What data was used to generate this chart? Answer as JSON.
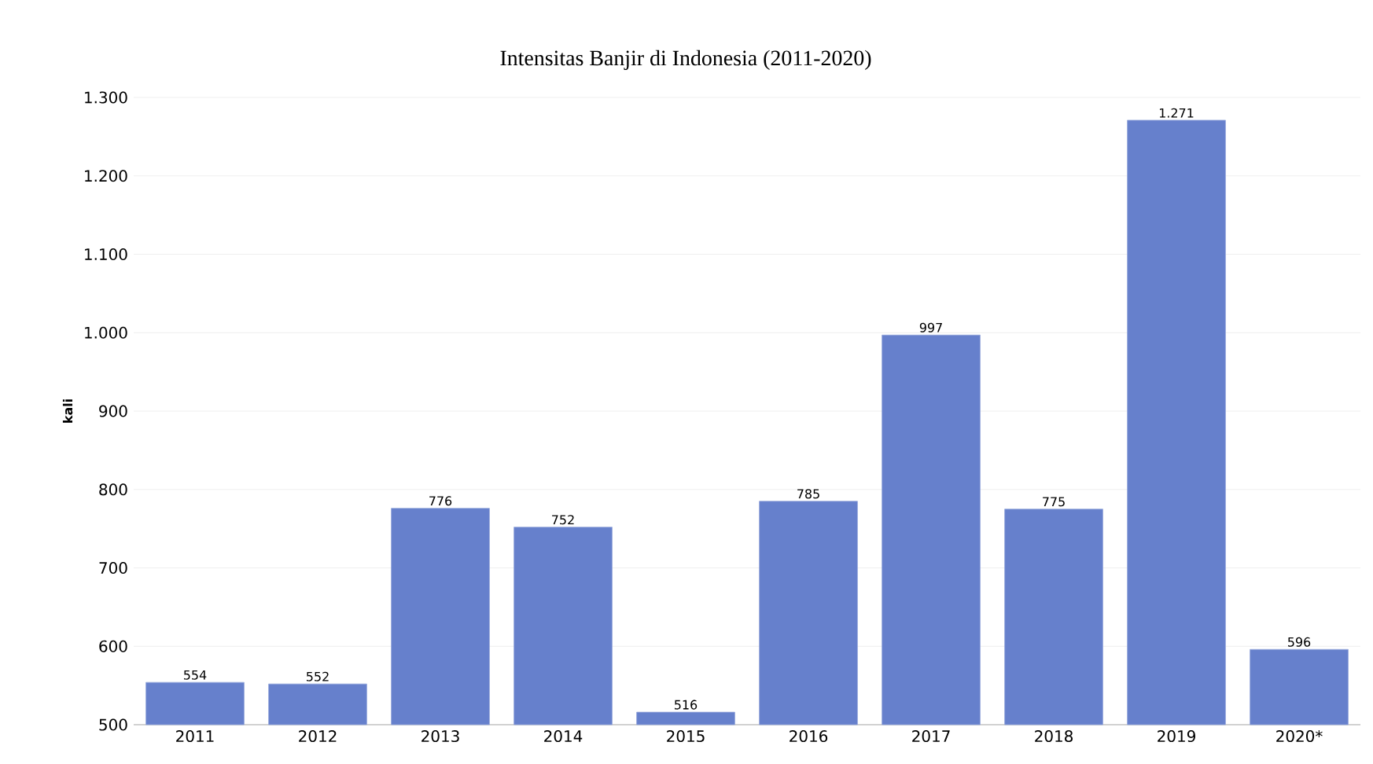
{
  "chart_data": {
    "type": "bar",
    "title": "Intensitas Banjir di Indonesia (2011-2020)",
    "ylabel": "kali",
    "categories": [
      "2011",
      "2012",
      "2013",
      "2014",
      "2015",
      "2016",
      "2017",
      "2018",
      "2019",
      "2020*"
    ],
    "values": [
      554,
      552,
      776,
      752,
      516,
      785,
      997,
      775,
      1271,
      596
    ],
    "value_labels": [
      "554",
      "552",
      "776",
      "752",
      "516",
      "785",
      "997",
      "775",
      "1.271",
      "596"
    ],
    "color": "#6680cc",
    "ylim": [
      500,
      1300
    ],
    "yticks": [
      500,
      600,
      700,
      800,
      900,
      {
        "value": 1000,
        "label": "1.000"
      },
      {
        "value": 1100,
        "label": "1.100"
      },
      {
        "value": 1200,
        "label": "1.200"
      },
      {
        "value": 1300,
        "label": "1.300"
      }
    ],
    "grid": "y"
  }
}
